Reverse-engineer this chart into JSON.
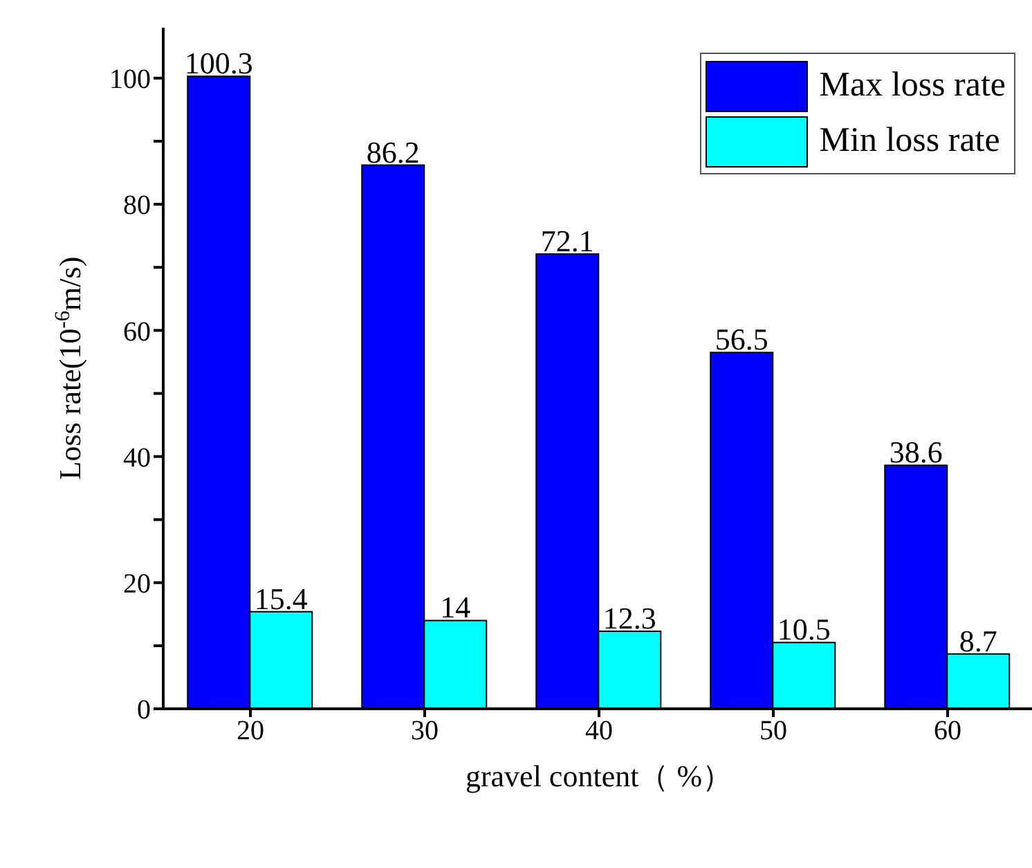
{
  "chart_data": {
    "type": "bar",
    "xlabel": "gravel content（ %）",
    "ylabel": "Loss rate(10$^{-6}$m/s)",
    "categories": [
      "20",
      "30",
      "40",
      "50",
      "60"
    ],
    "series": [
      {
        "name": "Max loss rate",
        "color": "#0000ff",
        "values": [
          100.3,
          86.2,
          72.1,
          56.5,
          38.6
        ]
      },
      {
        "name": "Min loss rate",
        "color": "#00ffff",
        "values": [
          15.4,
          14,
          12.3,
          10.5,
          8.7
        ]
      }
    ],
    "ylim": [
      0,
      108
    ],
    "yticks": [
      0,
      {
        "value": 10,
        "label": null
      },
      20,
      {
        "value": 30,
        "label": null
      },
      40,
      {
        "value": 50,
        "label": null
      },
      60,
      {
        "value": 70,
        "label": null
      },
      80,
      {
        "value": 90,
        "label": null
      },
      100
    ],
    "data_labels": true,
    "legend": "top right",
    "grid": false
  }
}
